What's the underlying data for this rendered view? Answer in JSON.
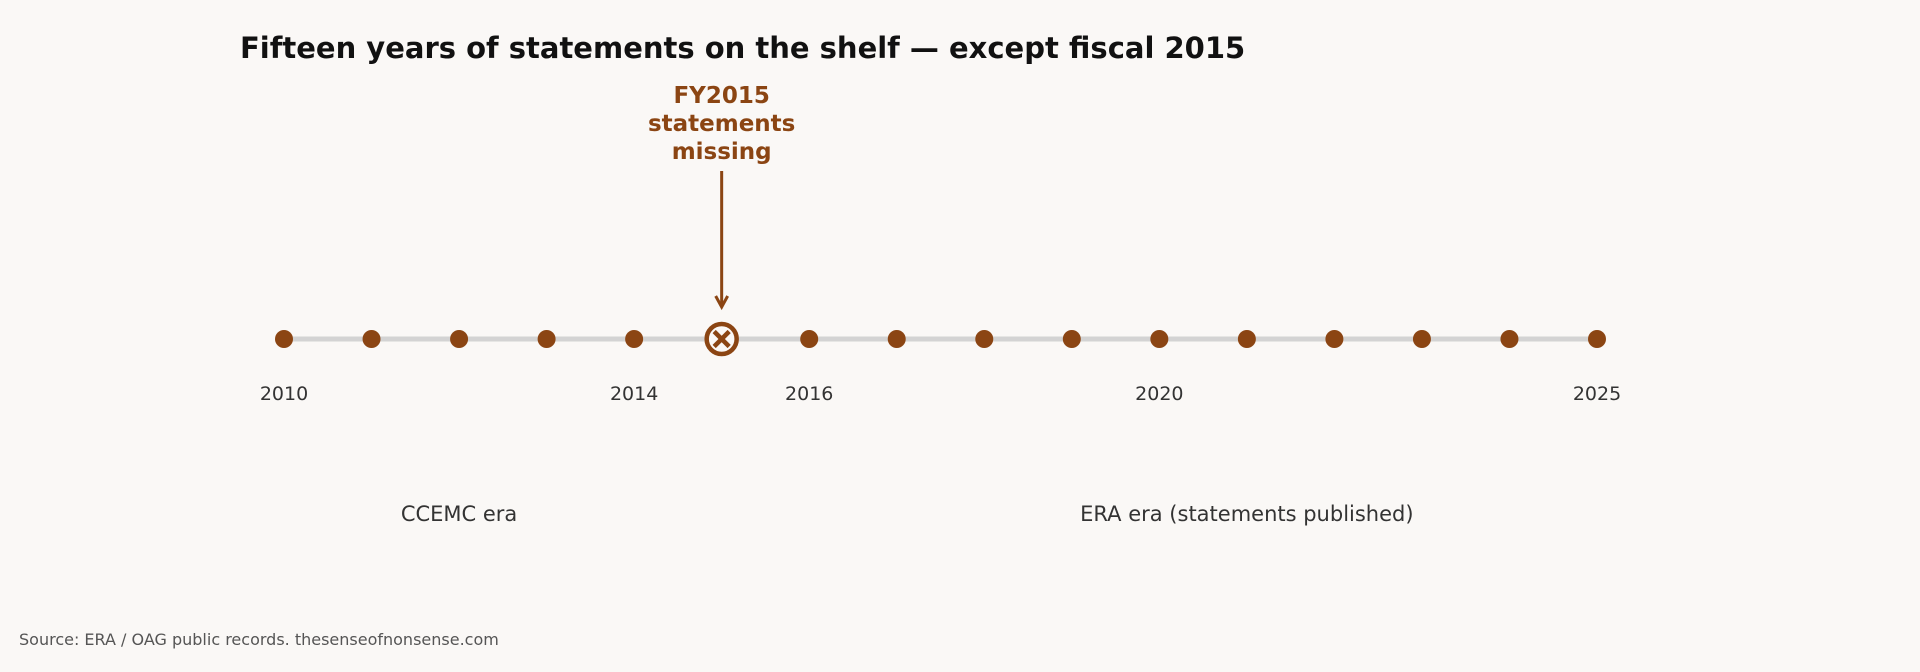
{
  "chart_data": {
    "type": "scatter",
    "title": "Fifteen years of statements on the shelf — except fiscal 2015",
    "x": [
      2010,
      2011,
      2012,
      2013,
      2014,
      2015,
      2016,
      2017,
      2018,
      2019,
      2020,
      2021,
      2022,
      2023,
      2024,
      2025
    ],
    "status": [
      "present",
      "present",
      "present",
      "present",
      "present",
      "missing",
      "present",
      "present",
      "present",
      "present",
      "present",
      "present",
      "present",
      "present",
      "present",
      "present"
    ],
    "xlim": [
      2010,
      2025
    ],
    "tick_labels": [
      "2010",
      "2014",
      "2016",
      "2020",
      "2025"
    ],
    "tick_values": [
      2010,
      2014,
      2016,
      2020,
      2025
    ],
    "annotation": {
      "x": 2015,
      "lines": [
        "FY2015",
        "statements",
        "missing"
      ]
    },
    "eras": [
      {
        "label": "CCEMC era",
        "center": 2012
      },
      {
        "label": "ERA era (statements published)",
        "center": 2021
      }
    ],
    "grid": false,
    "legend": "none",
    "colors": {
      "marker": "#8b4513",
      "line": "#d3d3d3",
      "annotation": "#8b4513"
    }
  },
  "source": "Source: ERA / OAG public records. thesenseofnonsense.com"
}
